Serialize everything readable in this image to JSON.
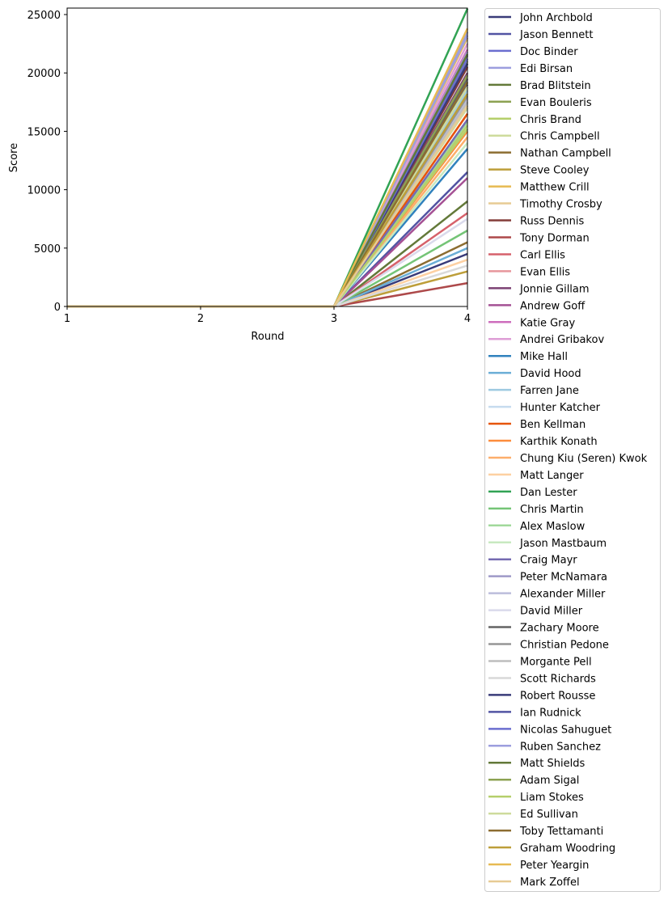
{
  "chart_data": {
    "type": "line",
    "xlabel": "Round",
    "ylabel": "Score",
    "xlim": [
      1,
      4
    ],
    "ylim": [
      0,
      25500
    ],
    "x": [
      1,
      2,
      3,
      4
    ],
    "xticks": [
      "1",
      "2",
      "3",
      "4"
    ],
    "yticks": [
      "0",
      "5000",
      "10000",
      "15000",
      "20000",
      "25000"
    ],
    "grid": false,
    "legend": "outside-right",
    "series": [
      {
        "name": "John Archbold",
        "color": "#393b79",
        "values": [
          0,
          0,
          0,
          4500
        ]
      },
      {
        "name": "Jason Bennett",
        "color": "#5254a3",
        "values": [
          0,
          0,
          0,
          11500
        ]
      },
      {
        "name": "Doc Binder",
        "color": "#6b6ecf",
        "values": [
          0,
          0,
          0,
          21500
        ]
      },
      {
        "name": "Edi Birsan",
        "color": "#9c9ede",
        "values": [
          0,
          0,
          0,
          23500
        ]
      },
      {
        "name": "Brad Blitstein",
        "color": "#637939",
        "values": [
          0,
          0,
          0,
          9000
        ]
      },
      {
        "name": "Evan Bouleris",
        "color": "#8ca252",
        "values": [
          0,
          0,
          0,
          21000
        ]
      },
      {
        "name": "Chris Brand",
        "color": "#b5cf6b",
        "values": [
          0,
          0,
          0,
          15500
        ]
      },
      {
        "name": "Chris Campbell",
        "color": "#cedb9c",
        "values": [
          0,
          0,
          0,
          17000
        ]
      },
      {
        "name": "Nathan Campbell",
        "color": "#8c6d31",
        "values": [
          0,
          0,
          0,
          5500
        ]
      },
      {
        "name": "Steve Cooley",
        "color": "#bd9e39",
        "values": [
          0,
          0,
          0,
          3000
        ]
      },
      {
        "name": "Matthew Crill",
        "color": "#e7ba52",
        "values": [
          0,
          0,
          0,
          23000
        ]
      },
      {
        "name": "Timothy Crosby",
        "color": "#e7cb94",
        "values": [
          0,
          0,
          0,
          17500
        ]
      },
      {
        "name": "Russ Dennis",
        "color": "#843c39",
        "values": [
          0,
          0,
          0,
          20500
        ]
      },
      {
        "name": "Tony Dorman",
        "color": "#ad494a",
        "values": [
          0,
          0,
          0,
          2000
        ]
      },
      {
        "name": "Carl Ellis",
        "color": "#d6616b",
        "values": [
          0,
          0,
          0,
          8000
        ]
      },
      {
        "name": "Evan Ellis",
        "color": "#e7969c",
        "values": [
          0,
          0,
          0,
          16500
        ]
      },
      {
        "name": "Jonnie Gillam",
        "color": "#7b4173",
        "values": [
          0,
          0,
          0,
          20000
        ]
      },
      {
        "name": "Andrew Goff",
        "color": "#a55194",
        "values": [
          0,
          0,
          0,
          11000
        ]
      },
      {
        "name": "Katie Gray",
        "color": "#ce6dbd",
        "values": [
          0,
          0,
          0,
          22000
        ]
      },
      {
        "name": "Andrei Gribakov",
        "color": "#de9ed6",
        "values": [
          0,
          0,
          0,
          22500
        ]
      },
      {
        "name": "Mike Hall",
        "color": "#3182bd",
        "values": [
          0,
          0,
          0,
          13500
        ]
      },
      {
        "name": "David Hood",
        "color": "#6baed6",
        "values": [
          0,
          0,
          0,
          5000
        ]
      },
      {
        "name": "Farren Jane",
        "color": "#9ecae1",
        "values": [
          0,
          0,
          0,
          18500
        ]
      },
      {
        "name": "Hunter Katcher",
        "color": "#c6dbef",
        "values": [
          0,
          0,
          0,
          16000
        ]
      },
      {
        "name": "Ben Kellman",
        "color": "#e6550d",
        "values": [
          0,
          0,
          0,
          16500
        ]
      },
      {
        "name": "Karthik Konath",
        "color": "#fd8d3c",
        "values": [
          0,
          0,
          0,
          15000
        ]
      },
      {
        "name": "Chung Kiu (Seren) Kwok",
        "color": "#fdae6b",
        "values": [
          0,
          0,
          0,
          14500
        ]
      },
      {
        "name": "Matt Langer",
        "color": "#fdd0a2",
        "values": [
          0,
          0,
          0,
          4000
        ]
      },
      {
        "name": "Dan Lester",
        "color": "#31a354",
        "values": [
          0,
          0,
          0,
          25500
        ]
      },
      {
        "name": "Chris Martin",
        "color": "#74c476",
        "values": [
          0,
          0,
          0,
          6500
        ]
      },
      {
        "name": "Alex Maslow",
        "color": "#a1d99b",
        "values": [
          0,
          0,
          0,
          15800
        ]
      },
      {
        "name": "Jason Mastbaum",
        "color": "#c7e9c0",
        "values": [
          0,
          0,
          0,
          14000
        ]
      },
      {
        "name": "Craig Mayr",
        "color": "#756bb1",
        "values": [
          0,
          0,
          0,
          16000
        ]
      },
      {
        "name": "Peter McNamara",
        "color": "#9e9ac8",
        "values": [
          0,
          0,
          0,
          21800
        ]
      },
      {
        "name": "Alexander Miller",
        "color": "#bcbddc",
        "values": [
          0,
          0,
          0,
          17800
        ]
      },
      {
        "name": "David Miller",
        "color": "#dadaeb",
        "values": [
          0,
          0,
          0,
          7500
        ]
      },
      {
        "name": "Zachary Moore",
        "color": "#636363",
        "values": [
          0,
          0,
          0,
          19500
        ]
      },
      {
        "name": "Christian Pedone",
        "color": "#969696",
        "values": [
          0,
          0,
          0,
          18000
        ]
      },
      {
        "name": "Morgante Pell",
        "color": "#bdbdbd",
        "values": [
          0,
          0,
          0,
          17500
        ]
      },
      {
        "name": "Scott Richards",
        "color": "#d9d9d9",
        "values": [
          0,
          0,
          0,
          3500
        ]
      },
      {
        "name": "Robert Rousse",
        "color": "#393b79",
        "values": [
          0,
          0,
          0,
          20800
        ]
      },
      {
        "name": "Ian Rudnick",
        "color": "#5254a3",
        "values": [
          0,
          0,
          0,
          19000
        ]
      },
      {
        "name": "Nicolas Sahuguet",
        "color": "#6b6ecf",
        "values": [
          0,
          0,
          0,
          21200
        ]
      },
      {
        "name": "Ruben Sanchez",
        "color": "#9c9ede",
        "values": [
          0,
          0,
          0,
          23200
        ]
      },
      {
        "name": "Matt Shields",
        "color": "#637939",
        "values": [
          0,
          0,
          0,
          21600
        ]
      },
      {
        "name": "Adam Sigal",
        "color": "#8ca252",
        "values": [
          0,
          0,
          0,
          19800
        ]
      },
      {
        "name": "Liam Stokes",
        "color": "#b5cf6b",
        "values": [
          0,
          0,
          0,
          15200
        ]
      },
      {
        "name": "Ed Sullivan",
        "color": "#cedb9c",
        "values": [
          0,
          0,
          0,
          18800
        ]
      },
      {
        "name": "Toby Tettamanti",
        "color": "#8c6d31",
        "values": [
          0,
          0,
          0,
          19200
        ]
      },
      {
        "name": "Graham Woodring",
        "color": "#bd9e39",
        "values": [
          0,
          0,
          0,
          18200
        ]
      },
      {
        "name": "Peter Yeargin",
        "color": "#e7ba52",
        "values": [
          0,
          0,
          0,
          23800
        ]
      },
      {
        "name": "Mark Zoffel",
        "color": "#e7cb94",
        "values": [
          0,
          0,
          0,
          17200
        ]
      }
    ]
  }
}
